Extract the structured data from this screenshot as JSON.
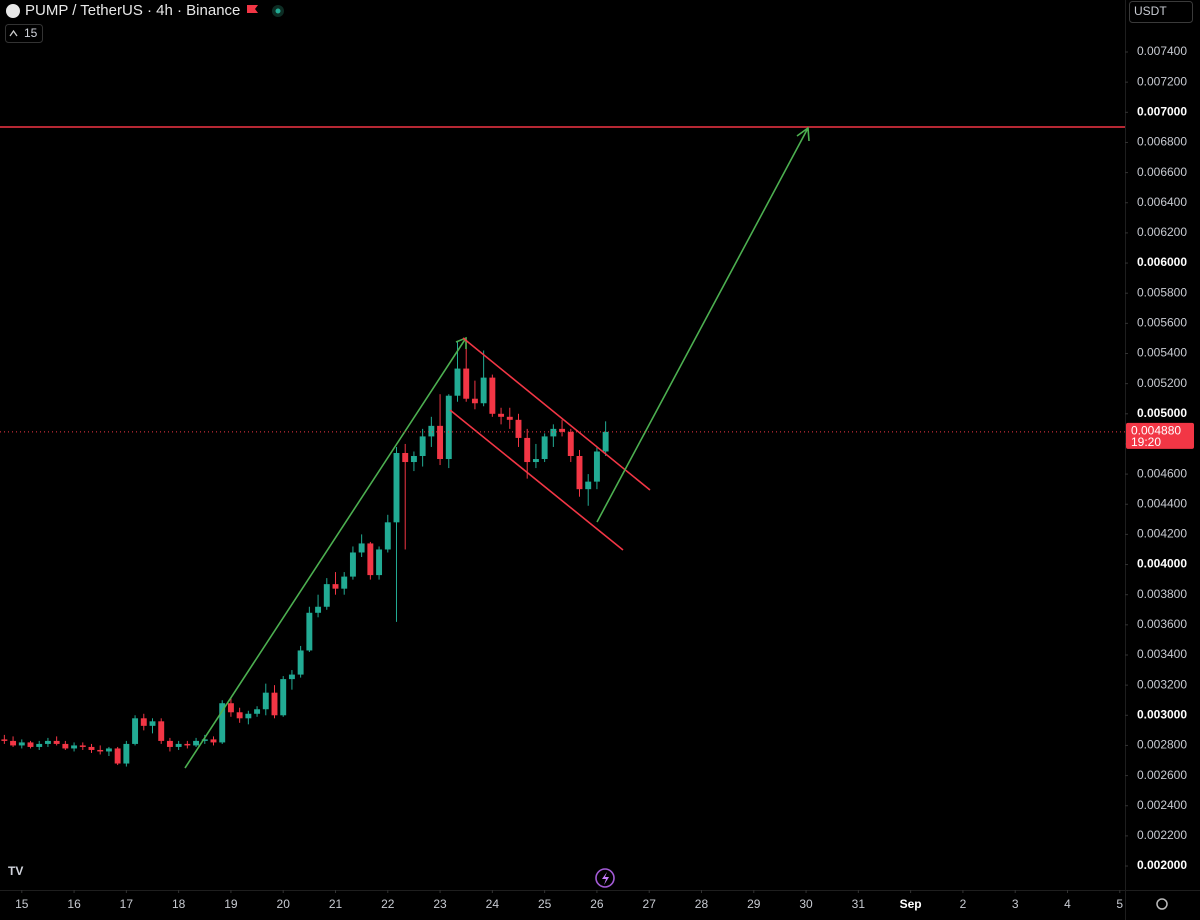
{
  "chart_data": {
    "type": "candlestick",
    "title": "PUMP / TetherUS · 4h · Binance",
    "indicator_count": 15,
    "currency": "USDT",
    "up_color": "#22ab94",
    "down_color": "#f23645",
    "open": [
      0.00284,
      0.00283,
      0.0028,
      0.00282,
      0.00279,
      0.00281,
      0.00283,
      0.00281,
      0.00278,
      0.0028,
      0.00279,
      0.00277,
      0.00276,
      0.00278,
      0.00268,
      0.00281,
      0.00298,
      0.00293,
      0.00296,
      0.00283,
      0.00279,
      0.00281,
      0.0028,
      0.00283,
      0.00284,
      0.00282,
      0.00308,
      0.00302,
      0.00298,
      0.00301,
      0.00304,
      0.00315,
      0.003,
      0.00324,
      0.00327,
      0.00343,
      0.00368,
      0.00372,
      0.00387,
      0.00384,
      0.00392,
      0.00408,
      0.00414,
      0.00393,
      0.0041,
      0.00428,
      0.00474,
      0.00468,
      0.00472,
      0.00485,
      0.00492,
      0.0047,
      0.00512,
      0.0053,
      0.0051,
      0.00507,
      0.00524,
      0.005,
      0.00498,
      0.00496,
      0.00484,
      0.00468,
      0.0047,
      0.00485,
      0.0049,
      0.00488,
      0.00472,
      0.0045,
      0.00455,
      0.00475
    ],
    "high": [
      0.00287,
      0.00286,
      0.00284,
      0.00283,
      0.00283,
      0.00285,
      0.00286,
      0.00283,
      0.00282,
      0.00282,
      0.00281,
      0.0028,
      0.00279,
      0.00279,
      0.00283,
      0.003,
      0.00301,
      0.00298,
      0.00298,
      0.00285,
      0.00283,
      0.00283,
      0.00285,
      0.00287,
      0.00286,
      0.0031,
      0.00312,
      0.00305,
      0.00303,
      0.00306,
      0.00321,
      0.0032,
      0.00326,
      0.0033,
      0.00346,
      0.00372,
      0.0038,
      0.00391,
      0.00395,
      0.00395,
      0.00412,
      0.0042,
      0.00415,
      0.00412,
      0.00433,
      0.00478,
      0.0048,
      0.00475,
      0.0049,
      0.00498,
      0.00513,
      0.00513,
      0.00548,
      0.0055,
      0.00522,
      0.00542,
      0.00526,
      0.00504,
      0.00504,
      0.005,
      0.0049,
      0.0048,
      0.00487,
      0.00493,
      0.00496,
      0.0049,
      0.00476,
      0.0046,
      0.00478,
      0.00495
    ],
    "low": [
      0.00281,
      0.00279,
      0.00278,
      0.00278,
      0.00277,
      0.00279,
      0.0028,
      0.00277,
      0.00276,
      0.00277,
      0.00275,
      0.00274,
      0.00273,
      0.00267,
      0.00266,
      0.0028,
      0.0029,
      0.00288,
      0.00281,
      0.00276,
      0.00277,
      0.00278,
      0.00279,
      0.00281,
      0.0028,
      0.00281,
      0.00299,
      0.00295,
      0.00294,
      0.00299,
      0.003,
      0.00298,
      0.00299,
      0.00317,
      0.00325,
      0.00342,
      0.00365,
      0.0037,
      0.0038,
      0.0038,
      0.0039,
      0.00405,
      0.0039,
      0.0039,
      0.00408,
      0.00362,
      0.0041,
      0.00462,
      0.00465,
      0.00478,
      0.00466,
      0.00464,
      0.00508,
      0.00508,
      0.00503,
      0.00505,
      0.00498,
      0.00493,
      0.0049,
      0.00478,
      0.00457,
      0.00464,
      0.00468,
      0.00478,
      0.00485,
      0.00468,
      0.00445,
      0.00439,
      0.0045,
      0.00472
    ],
    "close": [
      0.00283,
      0.0028,
      0.00282,
      0.00279,
      0.00281,
      0.00283,
      0.00281,
      0.00278,
      0.0028,
      0.00279,
      0.00277,
      0.00276,
      0.00278,
      0.00268,
      0.00281,
      0.00298,
      0.00293,
      0.00296,
      0.00283,
      0.00279,
      0.00281,
      0.0028,
      0.00283,
      0.00284,
      0.00282,
      0.00308,
      0.00302,
      0.00298,
      0.00301,
      0.00304,
      0.00315,
      0.003,
      0.00324,
      0.00327,
      0.00343,
      0.00368,
      0.00372,
      0.00387,
      0.00384,
      0.00392,
      0.00408,
      0.00414,
      0.00393,
      0.0041,
      0.00428,
      0.00474,
      0.00468,
      0.00472,
      0.00485,
      0.00492,
      0.0047,
      0.00512,
      0.0053,
      0.0051,
      0.00507,
      0.00524,
      0.005,
      0.00498,
      0.00496,
      0.00484,
      0.00468,
      0.0047,
      0.00485,
      0.0049,
      0.00488,
      0.00472,
      0.0045,
      0.00455,
      0.00475,
      0.00488
    ],
    "last_price": {
      "value": 0.00488,
      "label": "0.004880"
    },
    "countdown": "19:20",
    "xlim": [
      -0.5,
      128.6
    ],
    "ylim": [
      0.001841,
      0.007745
    ],
    "xticks": [
      {
        "value": 2,
        "label": "15"
      },
      {
        "value": 8,
        "label": "16"
      },
      {
        "value": 14,
        "label": "17"
      },
      {
        "value": 20,
        "label": "18"
      },
      {
        "value": 26,
        "label": "19"
      },
      {
        "value": 32,
        "label": "20"
      },
      {
        "value": 38,
        "label": "21"
      },
      {
        "value": 44,
        "label": "22"
      },
      {
        "value": 50,
        "label": "23"
      },
      {
        "value": 56,
        "label": "24"
      },
      {
        "value": 62,
        "label": "25"
      },
      {
        "value": 68,
        "label": "26"
      },
      {
        "value": 74,
        "label": "27"
      },
      {
        "value": 80,
        "label": "28"
      },
      {
        "value": 86,
        "label": "29"
      },
      {
        "value": 92,
        "label": "30"
      },
      {
        "value": 98,
        "label": "31"
      },
      {
        "value": 104,
        "label": "Sep"
      },
      {
        "value": 110,
        "label": "2"
      },
      {
        "value": 116,
        "label": "3"
      },
      {
        "value": 122,
        "label": "4"
      },
      {
        "value": 128,
        "label": "5"
      }
    ],
    "yticks": [
      {
        "value": 0.002,
        "label": "0.002000"
      },
      {
        "value": 0.0022,
        "label": "0.002200"
      },
      {
        "value": 0.0024,
        "label": "0.002400"
      },
      {
        "value": 0.0026,
        "label": "0.002600"
      },
      {
        "value": 0.0028,
        "label": "0.002800"
      },
      {
        "value": 0.003,
        "label": "0.003000"
      },
      {
        "value": 0.0032,
        "label": "0.003200"
      },
      {
        "value": 0.0034,
        "label": "0.003400"
      },
      {
        "value": 0.0036,
        "label": "0.003600"
      },
      {
        "value": 0.0038,
        "label": "0.003800"
      },
      {
        "value": 0.004,
        "label": "0.004000"
      },
      {
        "value": 0.0042,
        "label": "0.004200"
      },
      {
        "value": 0.0044,
        "label": "0.004400"
      },
      {
        "value": 0.0046,
        "label": "0.004600"
      },
      {
        "value": 0.0048,
        "label": "0.004800"
      },
      {
        "value": 0.005,
        "label": "0.005000"
      },
      {
        "value": 0.0052,
        "label": "0.005200"
      },
      {
        "value": 0.0054,
        "label": "0.005400"
      },
      {
        "value": 0.0056,
        "label": "0.005600"
      },
      {
        "value": 0.0058,
        "label": "0.005800"
      },
      {
        "value": 0.006,
        "label": "0.006000"
      },
      {
        "value": 0.0062,
        "label": "0.006200"
      },
      {
        "value": 0.0064,
        "label": "0.006400"
      },
      {
        "value": 0.0066,
        "label": "0.006600"
      },
      {
        "value": 0.0068,
        "label": "0.006800"
      },
      {
        "value": 0.007,
        "label": "0.007000"
      },
      {
        "value": 0.0072,
        "label": "0.007200"
      },
      {
        "value": 0.0074,
        "label": "0.007400"
      }
    ]
  }
}
